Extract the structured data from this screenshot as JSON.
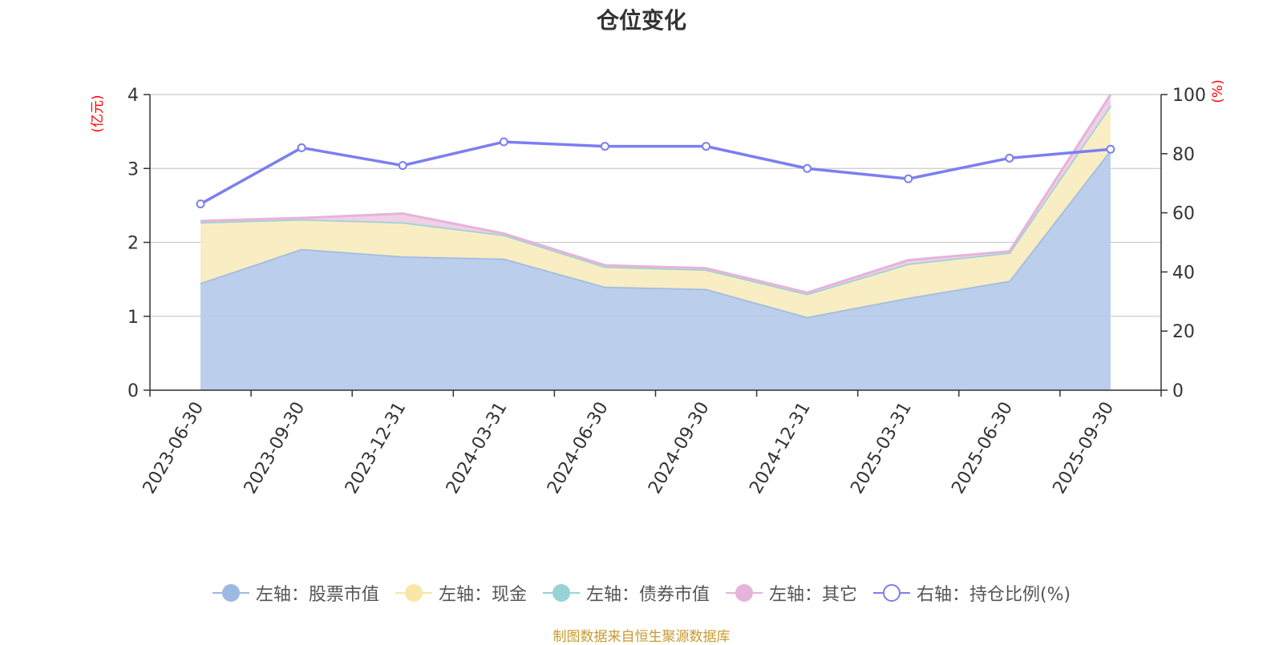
{
  "chart_data": {
    "type": "area",
    "title": "仓位变化",
    "categories": [
      "2023-06-30",
      "2023-09-30",
      "2023-12-31",
      "2024-03-31",
      "2024-06-30",
      "2024-09-30",
      "2024-12-31",
      "2025-03-31",
      "2025-06-30",
      "2025-09-30"
    ],
    "left_axis": {
      "unit": "(亿元)",
      "range": [
        0,
        4
      ],
      "ticks": [
        "0",
        "1",
        "2",
        "3",
        "4"
      ]
    },
    "right_axis": {
      "unit": "(%)",
      "range": [
        0,
        100
      ],
      "ticks": [
        "0",
        "20",
        "40",
        "60",
        "80",
        "100"
      ]
    },
    "series": [
      {
        "name": "左轴：股票市值",
        "axis": "left",
        "stack": true,
        "color": "#9db8e2",
        "fill": "#b7cbea",
        "values": [
          1.45,
          1.91,
          1.81,
          1.78,
          1.4,
          1.37,
          0.99,
          1.25,
          1.48,
          3.25
        ]
      },
      {
        "name": "左轴：现金",
        "axis": "left",
        "stack": true,
        "color": "#f8e7a6",
        "fill": "#f9edc0",
        "values": [
          0.82,
          0.4,
          0.46,
          0.32,
          0.27,
          0.26,
          0.31,
          0.46,
          0.38,
          0.6
        ]
      },
      {
        "name": "左轴：债券市值",
        "axis": "left",
        "stack": true,
        "color": "#96d3d6",
        "fill": "#b2e1e3",
        "values": [
          0,
          0,
          0,
          0,
          0,
          0,
          0,
          0,
          0,
          0
        ]
      },
      {
        "name": "左轴：其它",
        "axis": "left",
        "stack": true,
        "color": "#e6b3da",
        "fill": "#efcde6",
        "values": [
          0.02,
          0.02,
          0.12,
          0.02,
          0.02,
          0.02,
          0.02,
          0.05,
          0.02,
          0.15
        ]
      },
      {
        "name": "右轴：持仓比例(%)",
        "axis": "right",
        "stack": false,
        "color": "#7b7ff0",
        "fill": "none",
        "values": [
          63,
          82,
          76,
          84,
          82.5,
          82.5,
          75,
          71.5,
          78.5,
          81.5
        ]
      }
    ]
  },
  "legend": [
    {
      "label": "左轴：股票市值",
      "color": "#9db8e2",
      "style": "filled"
    },
    {
      "label": "左轴：现金",
      "color": "#f8e7a6",
      "style": "filled"
    },
    {
      "label": "左轴：债券市值",
      "color": "#96d3d6",
      "style": "filled"
    },
    {
      "label": "左轴：其它",
      "color": "#e6b3da",
      "style": "filled"
    },
    {
      "label": "右轴：持仓比例(%)",
      "color": "#7b7ff0",
      "style": "hollow"
    }
  ],
  "source_note": "制图数据来自恒生聚源数据库"
}
